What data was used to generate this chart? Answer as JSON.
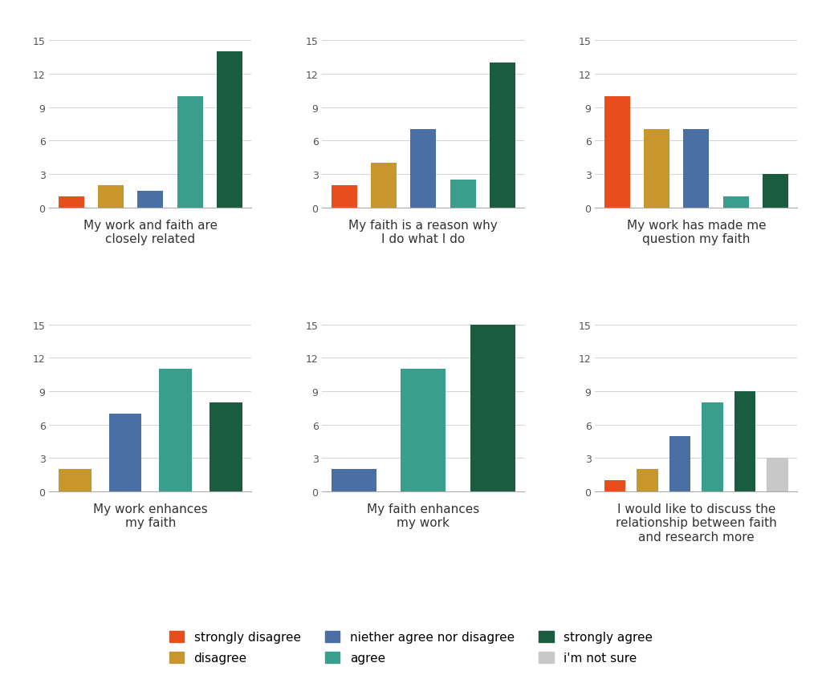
{
  "charts": [
    {
      "title": "My work and faith are\nclosely related",
      "values": [
        1,
        2,
        1.5,
        10,
        14,
        0
      ],
      "bars_present": [
        true,
        true,
        true,
        true,
        true,
        false
      ]
    },
    {
      "title": "My faith is a reason why\nI do what I do",
      "values": [
        2,
        4,
        7,
        2.5,
        13,
        0
      ],
      "bars_present": [
        true,
        true,
        true,
        true,
        true,
        false
      ]
    },
    {
      "title": "My work has made me\nquestion my faith",
      "values": [
        10,
        7,
        7,
        1,
        3,
        0
      ],
      "bars_present": [
        true,
        true,
        true,
        true,
        true,
        false
      ]
    },
    {
      "title": "My work enhances\nmy faith",
      "values": [
        0,
        2,
        7,
        11,
        8,
        0
      ],
      "bars_present": [
        false,
        true,
        true,
        true,
        true,
        false
      ]
    },
    {
      "title": "My faith enhances\nmy work",
      "values": [
        0,
        0,
        2,
        11,
        15,
        0
      ],
      "bars_present": [
        false,
        false,
        true,
        true,
        true,
        false
      ]
    },
    {
      "title": "I would like to discuss the\nrelationship between faith\nand research more",
      "values": [
        1,
        2,
        5,
        8,
        9,
        3
      ],
      "bars_present": [
        true,
        true,
        true,
        true,
        true,
        true
      ]
    }
  ],
  "categories": [
    "strongly disagree",
    "disagree",
    "niether agree nor disagree",
    "agree",
    "strongly agree",
    "i'm not sure"
  ],
  "colors": [
    "#e84e1b",
    "#c9962b",
    "#4a6fa5",
    "#3a9e8d",
    "#1a5c40",
    "#c8c8c8"
  ],
  "ylim": [
    0,
    15
  ],
  "yticks": [
    0,
    3,
    6,
    9,
    12,
    15
  ],
  "background_color": "#ffffff",
  "bar_width": 0.65,
  "title_fontsize": 11,
  "tick_fontsize": 9,
  "legend_fontsize": 11
}
